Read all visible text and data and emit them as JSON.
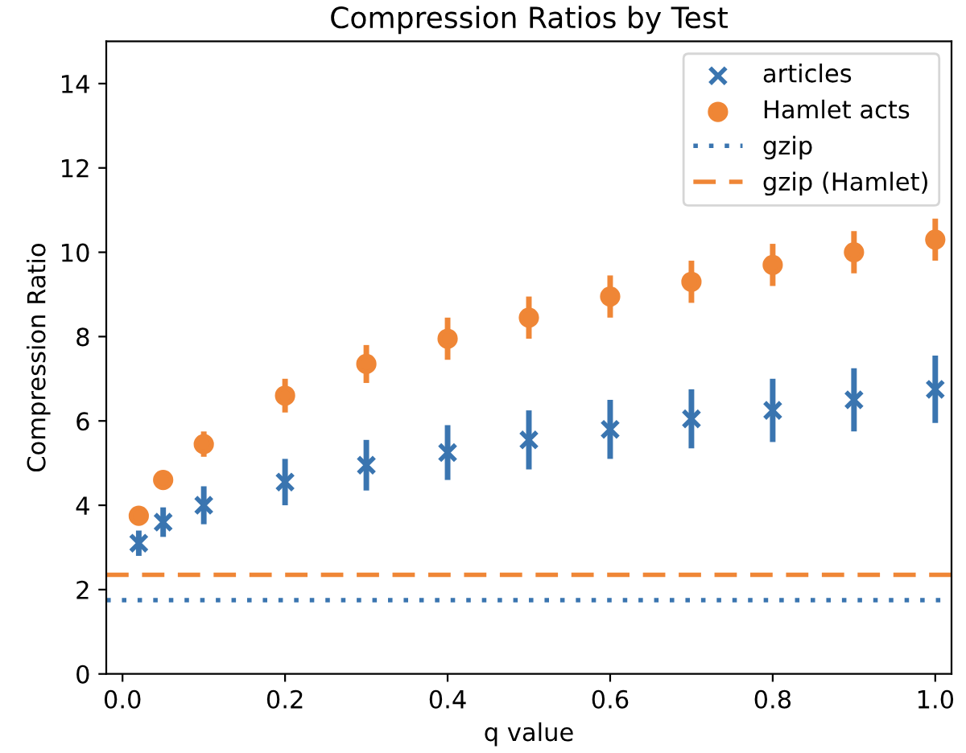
{
  "chart_data": {
    "type": "scatter",
    "title": "Compression Ratios by Test",
    "xlabel": "q value",
    "ylabel": "Compression Ratio",
    "xlim": [
      -0.02,
      1.02
    ],
    "xticks": [
      {
        "value": 0,
        "label": "0.0"
      },
      0.2,
      0.4,
      0.6,
      0.8,
      {
        "value": 1,
        "label": "1.0"
      }
    ],
    "ylim": [
      0,
      15
    ],
    "yticks": [
      0,
      2,
      4,
      6,
      8,
      10,
      12,
      14
    ],
    "grid": false,
    "legend": "top right",
    "x": [
      0.02,
      0.05,
      0.1,
      0.2,
      0.3,
      0.4,
      0.5,
      0.6,
      0.7,
      0.8,
      0.9,
      1.0
    ],
    "series": [
      {
        "name": "articles",
        "color": "#3a75b0",
        "marker": "cross",
        "values": [
          3.1,
          3.6,
          4.0,
          4.55,
          4.95,
          5.25,
          5.55,
          5.8,
          6.05,
          6.25,
          6.5,
          6.75
        ],
        "errors": [
          0.3,
          0.35,
          0.45,
          0.55,
          0.6,
          0.65,
          0.7,
          0.7,
          0.7,
          0.75,
          0.75,
          0.8
        ]
      },
      {
        "name": "Hamlet acts",
        "color": "#ef8636",
        "marker": "circle",
        "values": [
          3.75,
          4.6,
          5.45,
          6.6,
          7.35,
          7.95,
          8.45,
          8.95,
          9.3,
          9.7,
          10.0,
          10.3
        ],
        "errors": [
          0.05,
          0.1,
          0.3,
          0.4,
          0.45,
          0.5,
          0.5,
          0.5,
          0.5,
          0.5,
          0.5,
          0.5
        ]
      }
    ],
    "ref_lines": [
      {
        "axis": "y",
        "value": 1.75,
        "label": "gzip",
        "color": "#3a75b0",
        "line_style": "dotted"
      },
      {
        "axis": "y",
        "value": 2.35,
        "label": "gzip (Hamlet)",
        "color": "#ef8636",
        "line_style": "dashed"
      }
    ]
  }
}
